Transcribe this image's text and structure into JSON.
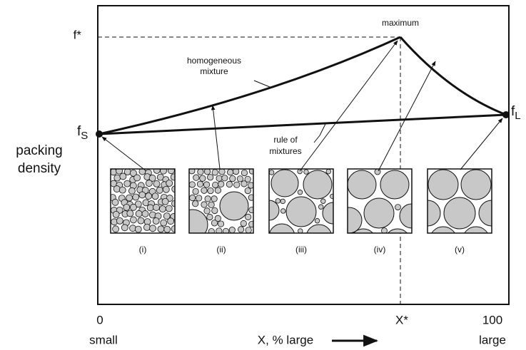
{
  "labels": {
    "f_star": "f*",
    "maximum": "maximum",
    "homogeneous_mixture": [
      "homogeneous",
      "mixture"
    ],
    "f_s": {
      "base": "f",
      "sub": "S"
    },
    "f_l": {
      "base": "f",
      "sub": "L"
    },
    "rule_of_mixtures": [
      "rule of",
      "mixtures"
    ],
    "packing_density": [
      "packing",
      "density"
    ]
  },
  "insets": [
    "(i)",
    "(ii)",
    "(iii)",
    "(iv)",
    "(v)"
  ],
  "x_axis": {
    "start": "0",
    "x_star": "X*",
    "end": "100",
    "left": "small",
    "title": "X, % large",
    "right": "large"
  }
}
